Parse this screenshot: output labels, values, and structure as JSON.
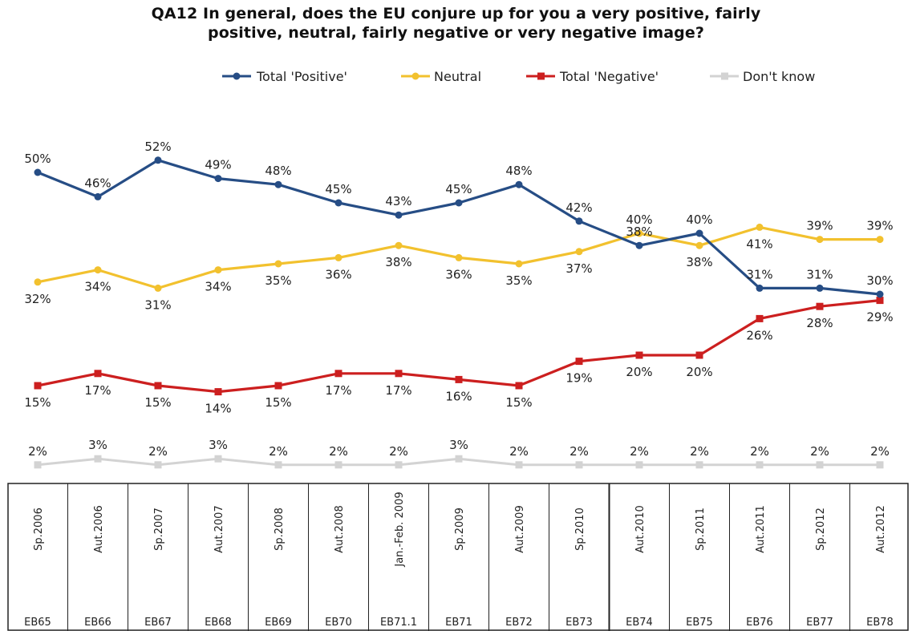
{
  "chart_data": {
    "type": "line",
    "title_line1": "QA12 In general, does the EU conjure up for you a very positive, fairly",
    "title_line2": "positive, neutral, fairly negative or very negative image?",
    "categories": [
      "Sp.2006",
      "Aut.2006",
      "Sp.2007",
      "Aut.2007",
      "Sp.2008",
      "Aut.2008",
      "Jan.-Feb. 2009",
      "Sp.2009",
      "Aut.2009",
      "Sp.2010",
      "Aut.2010",
      "Sp.2011",
      "Aut.2011",
      "Sp.2012",
      "Aut.2012"
    ],
    "codes": [
      "EB65",
      "EB66",
      "EB67",
      "EB68",
      "EB69",
      "EB70",
      "EB71.1",
      "EB71",
      "EB72",
      "EB73",
      "EB74",
      "EB75",
      "EB76",
      "EB77",
      "EB78"
    ],
    "series": [
      {
        "name": "Total 'Positive'",
        "color": "#264d85",
        "marker": "circle",
        "values": [
          50,
          46,
          52,
          49,
          48,
          45,
          43,
          45,
          48,
          42,
          38,
          40,
          31,
          31,
          30
        ],
        "label_pos": [
          "above",
          "above",
          "above",
          "above",
          "above",
          "above",
          "above",
          "above",
          "above",
          "above",
          "above",
          "above",
          "above",
          "above",
          "above"
        ]
      },
      {
        "name": "Neutral",
        "color": "#f2c12e",
        "marker": "circle",
        "values": [
          32,
          34,
          31,
          34,
          35,
          36,
          38,
          36,
          35,
          37,
          40,
          38,
          41,
          39,
          39
        ],
        "label_pos": [
          "below",
          "below",
          "below",
          "below",
          "below",
          "below",
          "below",
          "below",
          "below",
          "below",
          "above",
          "below",
          "below",
          "above",
          "above"
        ]
      },
      {
        "name": "Total 'Negative'",
        "color": "#cc1f1f",
        "marker": "square",
        "values": [
          15,
          17,
          15,
          14,
          15,
          17,
          17,
          16,
          15,
          19,
          20,
          20,
          26,
          28,
          29
        ],
        "label_pos": [
          "below",
          "below",
          "below",
          "below",
          "below",
          "below",
          "below",
          "below",
          "below",
          "below",
          "below",
          "below",
          "below",
          "below",
          "below"
        ]
      },
      {
        "name": "Don't know",
        "color": "#d3d3d3",
        "marker": "square",
        "values": [
          2,
          3,
          2,
          3,
          2,
          2,
          2,
          3,
          2,
          2,
          2,
          2,
          2,
          2,
          2
        ],
        "label_pos": [
          "above",
          "above",
          "above",
          "above",
          "above",
          "above",
          "above",
          "above",
          "above",
          "above",
          "above",
          "above",
          "above",
          "above",
          "above"
        ]
      }
    ],
    "value_suffix": "%",
    "legend_position": "top",
    "grid": false
  }
}
